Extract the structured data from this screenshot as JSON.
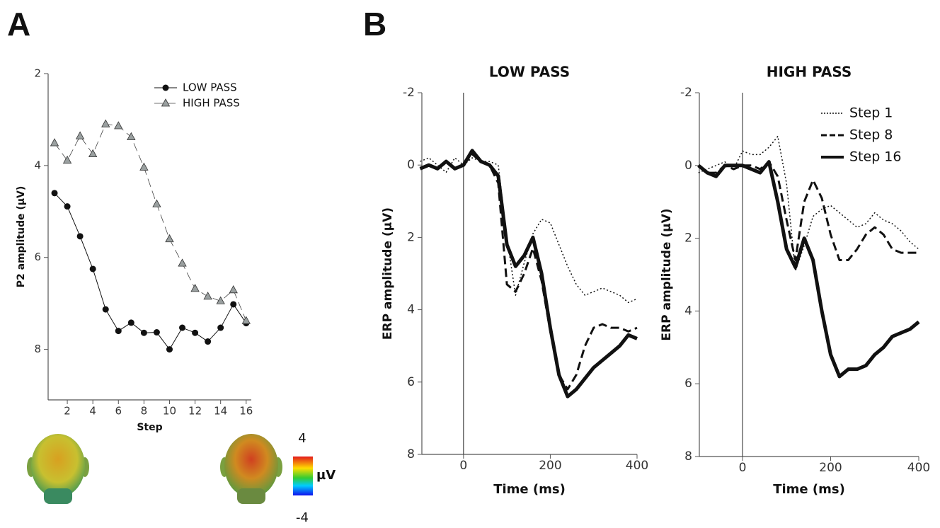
{
  "panel_labels": [
    "A",
    "B"
  ],
  "topomap": {
    "max": 4,
    "min": -4,
    "unit": "µV"
  },
  "chart_data": [
    {
      "type": "line",
      "x_label": "Step",
      "y_label": "P2 amplitude (µV)",
      "x": [
        1,
        2,
        3,
        4,
        5,
        6,
        7,
        8,
        9,
        10,
        11,
        12,
        13,
        14,
        15,
        16
      ],
      "xlim": [
        0.5,
        16.4
      ],
      "xticks": [
        2,
        4,
        6,
        8,
        10,
        12,
        14,
        16
      ],
      "ylim": [
        2,
        9.1
      ],
      "yticks": [
        2,
        4,
        6,
        8
      ],
      "y_inverted": true,
      "legend": "upper right",
      "series": [
        {
          "name": "LOW PASS",
          "color": "#111111",
          "marker": "circle",
          "line_style": "solid",
          "line_width": 1,
          "values": [
            4.6,
            4.89,
            5.54,
            6.25,
            7.13,
            7.6,
            7.42,
            7.64,
            7.63,
            8.0,
            7.53,
            7.64,
            7.83,
            7.53,
            7.02,
            7.43
          ]
        },
        {
          "name": "HIGH PASS",
          "color": "#444444",
          "marker": "triangle",
          "line_style": "dashed",
          "line_width": 0.8,
          "values": [
            3.51,
            3.89,
            3.36,
            3.75,
            3.1,
            3.14,
            3.38,
            4.04,
            4.84,
            5.6,
            6.13,
            6.68,
            6.85,
            6.95,
            6.71,
            7.38
          ]
        }
      ]
    },
    {
      "type": "line",
      "title": "LOW PASS",
      "x_label": "Time (ms)",
      "y_label": "ERP amplitude (µV)",
      "x": [
        -100,
        -80,
        -60,
        -40,
        -20,
        0,
        20,
        40,
        60,
        80,
        100,
        120,
        140,
        160,
        180,
        200,
        220,
        240,
        260,
        280,
        300,
        320,
        340,
        360,
        380,
        400
      ],
      "xlim": [
        -96,
        400
      ],
      "xticks": [
        0,
        200,
        400
      ],
      "ylim": [
        -2,
        8
      ],
      "yticks": [
        -2,
        0,
        2,
        4,
        6,
        8
      ],
      "y_inverted": true,
      "zero_line": true,
      "series": [
        {
          "name": "Step 1",
          "color": "#111111",
          "line_style": "dotted",
          "line_width": 1.5,
          "values": [
            -0.1,
            -0.2,
            0,
            0.2,
            -0.2,
            0,
            -0.2,
            -0.1,
            -0.1,
            0.0,
            2.0,
            3.6,
            2.7,
            1.9,
            1.5,
            1.6,
            2.2,
            2.8,
            3.3,
            3.6,
            3.5,
            3.4,
            3.5,
            3.6,
            3.8,
            3.7
          ]
        },
        {
          "name": "Step 8",
          "color": "#111111",
          "line_style": "dashed",
          "line_width": 3,
          "values": [
            0.1,
            0,
            0.1,
            -0.1,
            0.1,
            0,
            -0.3,
            -0.1,
            0,
            0.5,
            3.3,
            3.5,
            3.0,
            2.3,
            3.2,
            4.6,
            5.8,
            6.2,
            5.8,
            5.0,
            4.5,
            4.4,
            4.5,
            4.5,
            4.6,
            4.5
          ]
        },
        {
          "name": "Step 16",
          "color": "#111111",
          "line_style": "solid",
          "line_width": 5,
          "values": [
            0.1,
            0,
            0.1,
            -0.1,
            0.1,
            0,
            -0.4,
            -0.1,
            0,
            0.3,
            2.2,
            2.8,
            2.5,
            2.0,
            3.0,
            4.5,
            5.8,
            6.4,
            6.2,
            5.9,
            5.6,
            5.4,
            5.2,
            5.0,
            4.7,
            4.8
          ]
        }
      ]
    },
    {
      "type": "line",
      "title": "HIGH PASS",
      "x_label": "Time (ms)",
      "y_label": "ERP amplitude (µV)",
      "x": [
        -100,
        -80,
        -60,
        -40,
        -20,
        0,
        20,
        40,
        60,
        80,
        100,
        120,
        140,
        160,
        180,
        200,
        220,
        240,
        260,
        280,
        300,
        320,
        340,
        360,
        380,
        400
      ],
      "xlim": [
        -98,
        400
      ],
      "xticks": [
        0,
        200,
        400
      ],
      "ylim": [
        -2,
        8
      ],
      "yticks": [
        -2,
        0,
        2,
        4,
        6,
        8
      ],
      "y_inverted": true,
      "zero_line": true,
      "legend": "upper right",
      "series": [
        {
          "name": "Step 1",
          "color": "#111111",
          "line_style": "dotted",
          "line_width": 1.5,
          "values": [
            0.2,
            0.1,
            0,
            -0.1,
            0.1,
            -0.4,
            -0.3,
            -0.3,
            -0.5,
            -0.8,
            0.5,
            2.9,
            2.2,
            1.4,
            1.2,
            1.1,
            1.3,
            1.5,
            1.7,
            1.6,
            1.3,
            1.5,
            1.6,
            1.8,
            2.1,
            2.3
          ]
        },
        {
          "name": "Step 8",
          "color": "#111111",
          "line_style": "dashed",
          "line_width": 3,
          "values": [
            0,
            0.2,
            0.2,
            0,
            0.1,
            0,
            0,
            0.1,
            -0.1,
            0.3,
            1.5,
            2.6,
            1.0,
            0.4,
            0.9,
            1.9,
            2.6,
            2.6,
            2.3,
            1.9,
            1.7,
            1.9,
            2.3,
            2.4,
            2.4,
            2.4
          ]
        },
        {
          "name": "Step 16",
          "color": "#111111",
          "line_style": "solid",
          "line_width": 5,
          "values": [
            0,
            0.2,
            0.3,
            0,
            0,
            0,
            0.1,
            0.2,
            -0.1,
            1.0,
            2.3,
            2.8,
            2.0,
            2.6,
            4.0,
            5.2,
            5.8,
            5.6,
            5.6,
            5.5,
            5.2,
            5.0,
            4.7,
            4.6,
            4.5,
            4.3
          ]
        }
      ]
    }
  ]
}
